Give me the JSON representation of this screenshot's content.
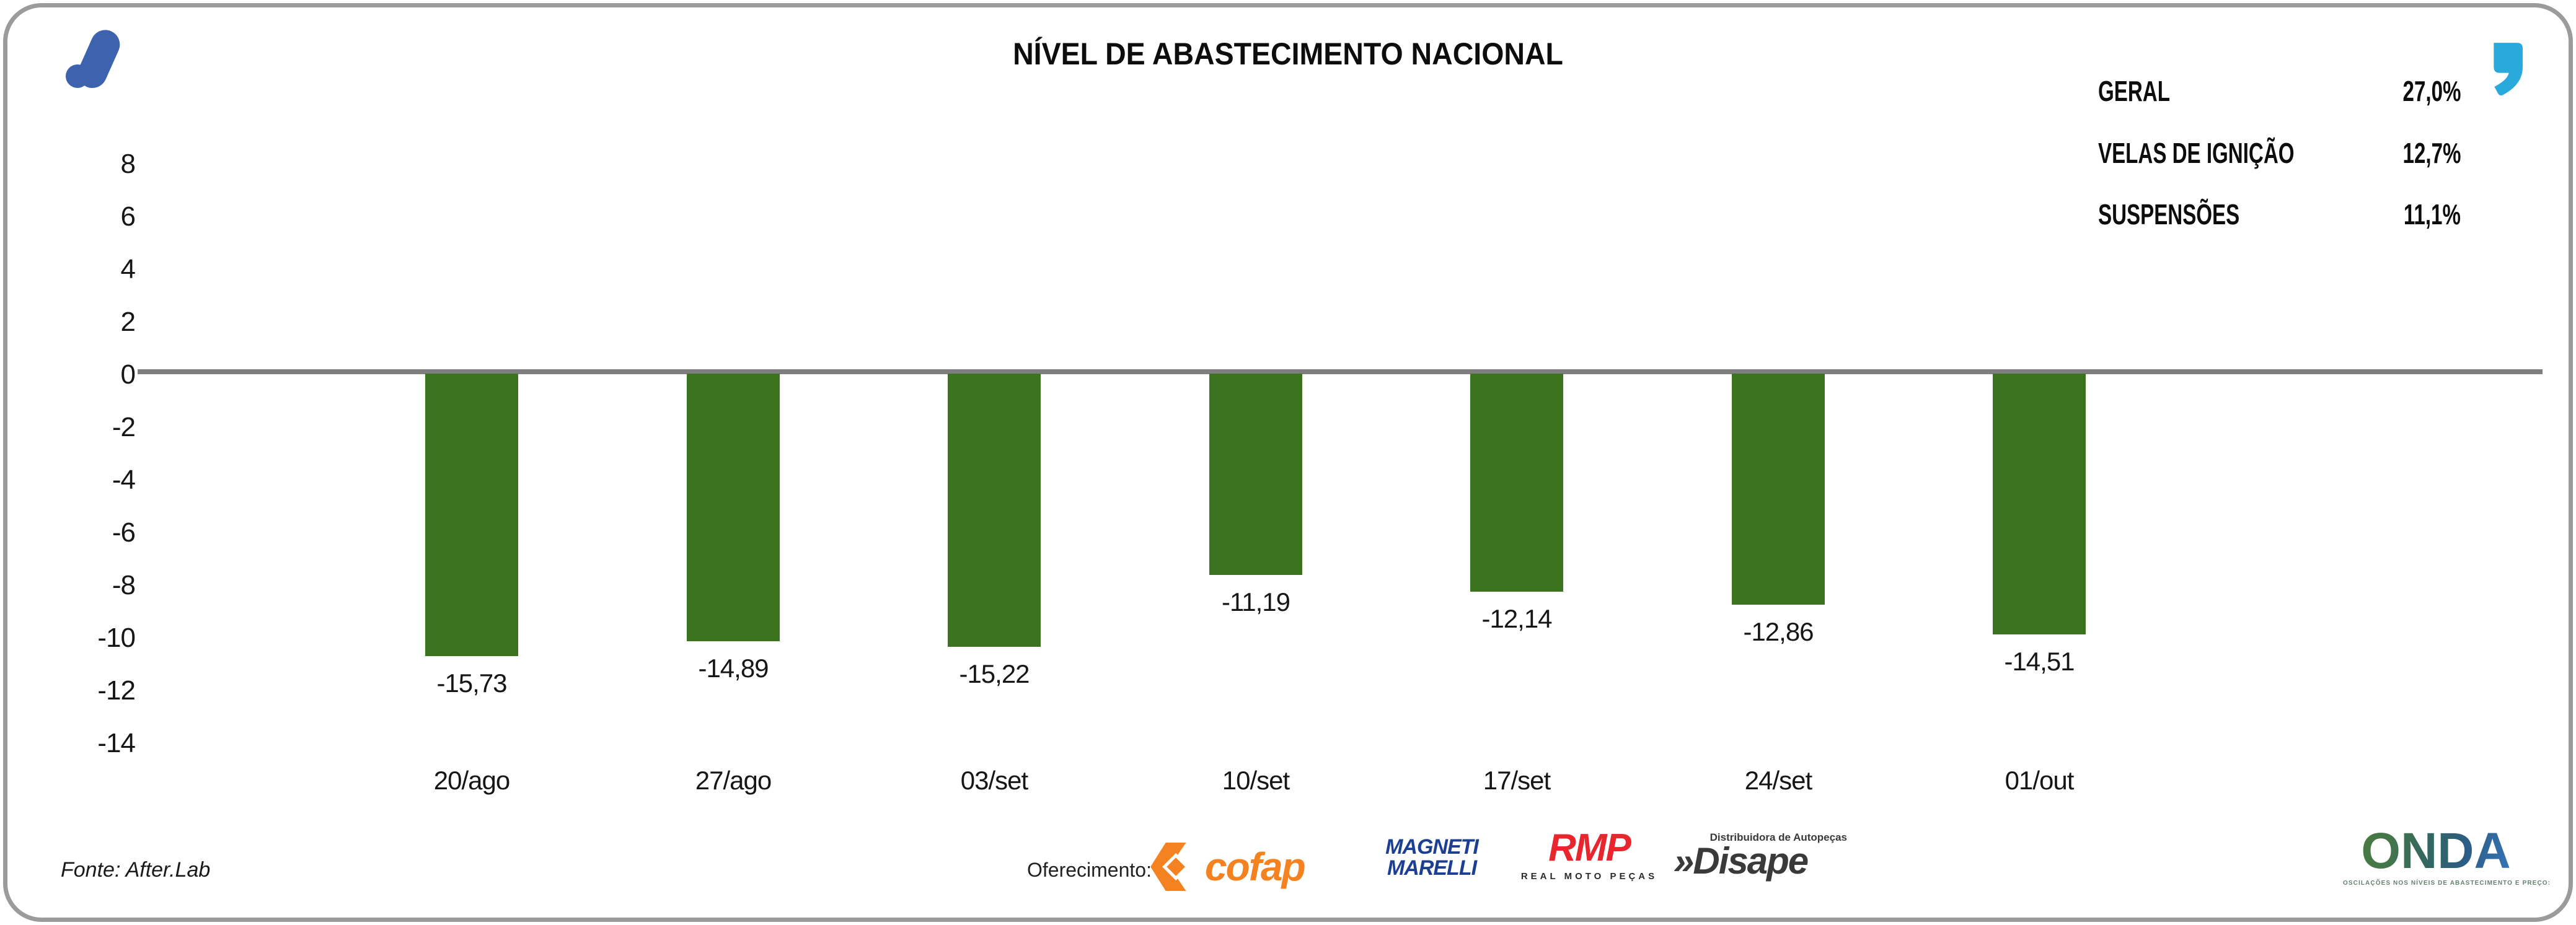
{
  "header": {
    "title": "NÍVEL DE ABASTECIMENTO NACIONAL"
  },
  "legend": {
    "items": [
      {
        "label": "GERAL",
        "value": "27,0%"
      },
      {
        "label": "VELAS DE IGNIÇÃO",
        "value": "12,7%"
      },
      {
        "label": "SUSPENSÕES",
        "value": "11,1%"
      }
    ]
  },
  "chart_data": {
    "type": "bar",
    "title": "NÍVEL DE ABASTECIMENTO NACIONAL",
    "categories": [
      "20/ago",
      "27/ago",
      "03/set",
      "10/set",
      "17/set",
      "24/set",
      "01/out"
    ],
    "values": [
      -15.73,
      -14.89,
      -15.22,
      -11.19,
      -12.14,
      -12.86,
      -14.51
    ],
    "value_labels": [
      "-15,73",
      "-14,89",
      "-15,22",
      "-11,19",
      "-12,14",
      "-12,86",
      "-14,51"
    ],
    "y_ticks": [
      8,
      6,
      4,
      2,
      0,
      -2,
      -4,
      -6,
      -8,
      -10,
      -12,
      -14
    ],
    "axis_range": [
      -14,
      8
    ],
    "grid": false,
    "legend_position": "top-right",
    "bar_color": "#3b731f",
    "zero_line_color": "#7f7f7f"
  },
  "icons": {
    "afterlab_logo": "afterlab-a-mark",
    "afterlab_logo_color": "#3d63ae",
    "quote": "quote-comma",
    "quote_color": "#29a9dc"
  },
  "footer": {
    "source": "Fonte: After.Lab",
    "sponsor_label": "Oferecimento:",
    "sponsors": {
      "cofap": "cofap",
      "magneti_line1": "MAGNETI",
      "magneti_line2": "MARELLI",
      "rmp": "RMP",
      "rmp_sub": "REAL MOTO PEÇAS",
      "disape_chevrons": "»",
      "disape": "Disape",
      "disape_sub": "Distribuidora de Autopeças"
    },
    "onda": {
      "name": "ONDA",
      "tagline": "OSCILAÇÕES NOS NÍVEIS DE ABASTECIMENTO E PREÇO:"
    }
  }
}
